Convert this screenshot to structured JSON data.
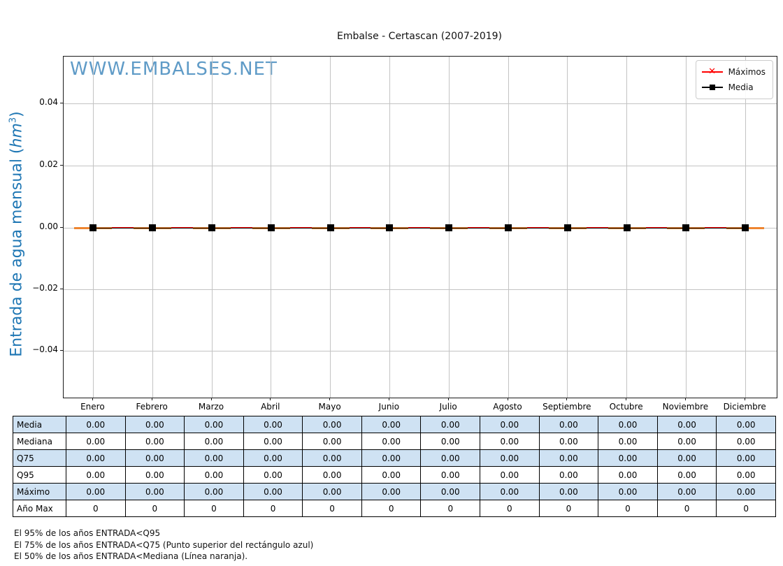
{
  "page": {
    "title": "Embalse - Certascan (2007-2019)",
    "watermark": "WWW.EMBALSES.NET"
  },
  "axis": {
    "ylabel_text": "Entrada de agua mensual (",
    "ylabel_unit": "hm",
    "ylabel_sup": "3",
    "ylabel_close": ")",
    "ytick_labels": [
      "0.04",
      "0.02",
      "0.00",
      "−0.02",
      "−0.04"
    ],
    "xtick_labels": [
      "Enero",
      "Febrero",
      "Marzo",
      "Abril",
      "Mayo",
      "Junio",
      "Julio",
      "Agosto",
      "Septiembre",
      "Octubre",
      "Noviembre",
      "Diciembre"
    ]
  },
  "legend": {
    "maximos_label": "Máximos",
    "media_label": "Media"
  },
  "colors": {
    "watermark": "#5f9bc7",
    "ylabel": "#1f77b4",
    "grid": "#c3c3c3",
    "maximos_red": "#ff0000",
    "media_black": "#000000",
    "mediana_orange": "#ee8530",
    "table_fill": "#cfe2f3"
  },
  "table": {
    "rows": [
      {
        "label": "Media",
        "values": [
          "0.00",
          "0.00",
          "0.00",
          "0.00",
          "0.00",
          "0.00",
          "0.00",
          "0.00",
          "0.00",
          "0.00",
          "0.00",
          "0.00"
        ]
      },
      {
        "label": "Mediana",
        "values": [
          "0.00",
          "0.00",
          "0.00",
          "0.00",
          "0.00",
          "0.00",
          "0.00",
          "0.00",
          "0.00",
          "0.00",
          "0.00",
          "0.00"
        ]
      },
      {
        "label": "Q75",
        "values": [
          "0.00",
          "0.00",
          "0.00",
          "0.00",
          "0.00",
          "0.00",
          "0.00",
          "0.00",
          "0.00",
          "0.00",
          "0.00",
          "0.00"
        ]
      },
      {
        "label": "Q95",
        "values": [
          "0.00",
          "0.00",
          "0.00",
          "0.00",
          "0.00",
          "0.00",
          "0.00",
          "0.00",
          "0.00",
          "0.00",
          "0.00",
          "0.00"
        ]
      },
      {
        "label": "Máximo",
        "values": [
          "0.00",
          "0.00",
          "0.00",
          "0.00",
          "0.00",
          "0.00",
          "0.00",
          "0.00",
          "0.00",
          "0.00",
          "0.00",
          "0.00"
        ]
      },
      {
        "label": "Año Max",
        "values": [
          "0",
          "0",
          "0",
          "0",
          "0",
          "0",
          "0",
          "0",
          "0",
          "0",
          "0",
          "0"
        ]
      }
    ]
  },
  "notes": [
    "El 95% de los años ENTRADA<Q95",
    "El 75% de los años ENTRADA<Q75 (Punto superior del rectángulo azul)",
    "El 50% de los años ENTRADA<Mediana (Línea naranja)."
  ],
  "chart_data": {
    "type": "line",
    "title": "Embalse - Certascan (2007-2019)",
    "categories": [
      "Enero",
      "Febrero",
      "Marzo",
      "Abril",
      "Mayo",
      "Junio",
      "Julio",
      "Agosto",
      "Septiembre",
      "Octubre",
      "Noviembre",
      "Diciembre"
    ],
    "series": [
      {
        "name": "Máximos",
        "values": [
          0,
          0,
          0,
          0,
          0,
          0,
          0,
          0,
          0,
          0,
          0,
          0
        ],
        "color": "#ff0000",
        "marker": "x"
      },
      {
        "name": "Media",
        "values": [
          0,
          0,
          0,
          0,
          0,
          0,
          0,
          0,
          0,
          0,
          0,
          0
        ],
        "color": "#000000",
        "marker": "square"
      },
      {
        "name": "Mediana",
        "values": [
          0,
          0,
          0,
          0,
          0,
          0,
          0,
          0,
          0,
          0,
          0,
          0
        ],
        "color": "#ee8530",
        "marker": "hline-segment"
      },
      {
        "name": "Q75",
        "values": [
          0,
          0,
          0,
          0,
          0,
          0,
          0,
          0,
          0,
          0,
          0,
          0
        ]
      },
      {
        "name": "Q95",
        "values": [
          0,
          0,
          0,
          0,
          0,
          0,
          0,
          0,
          0,
          0,
          0,
          0
        ]
      },
      {
        "name": "Año Max",
        "values": [
          0,
          0,
          0,
          0,
          0,
          0,
          0,
          0,
          0,
          0,
          0,
          0
        ]
      }
    ],
    "xlabel": "",
    "ylabel": "Entrada de agua mensual (hm³)",
    "ylim": [
      -0.055,
      0.055
    ],
    "yticks": [
      0.04,
      0.02,
      0.0,
      -0.02,
      -0.04
    ],
    "grid": true,
    "legend_position": "upper right"
  }
}
